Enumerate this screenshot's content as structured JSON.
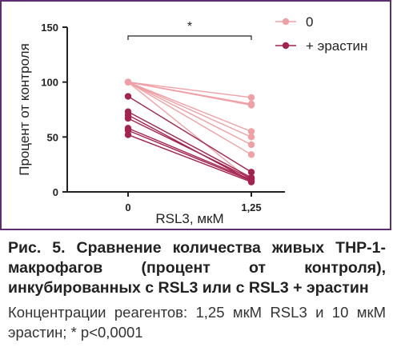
{
  "chart_data": {
    "type": "line",
    "title": "",
    "xlabel": "RSL3, мкМ",
    "ylabel": "Процент от контроля",
    "categories": [
      "0",
      "1,25"
    ],
    "ylim": [
      0,
      150
    ],
    "yticks": [
      0,
      50,
      100,
      150
    ],
    "legend_position": "top-right",
    "significance_label": "*",
    "series": [
      {
        "name": "0",
        "color": "#f0a0a4",
        "pairs": [
          [
            100,
            86
          ],
          [
            100,
            80
          ],
          [
            100,
            79
          ],
          [
            100,
            55
          ],
          [
            100,
            50
          ],
          [
            100,
            43
          ],
          [
            100,
            34
          ],
          [
            100,
            10
          ]
        ]
      },
      {
        "name": "+ эрастин",
        "color": "#a3224f",
        "pairs": [
          [
            87,
            18
          ],
          [
            73,
            13
          ],
          [
            70,
            10
          ],
          [
            67,
            12
          ],
          [
            58,
            11
          ],
          [
            56,
            10
          ],
          [
            52,
            9
          ]
        ]
      }
    ]
  },
  "caption": {
    "title": "Рис. 5. Сравнение количества живых THP-1-макрофагов (процент от контроля), инкубированных с RSL3 или с RSL3 + эрастин",
    "note": "Концентрации реагентов: 1,25 мкМ RSL3 и 10 мкМ эрастин; * p<0,0001"
  }
}
